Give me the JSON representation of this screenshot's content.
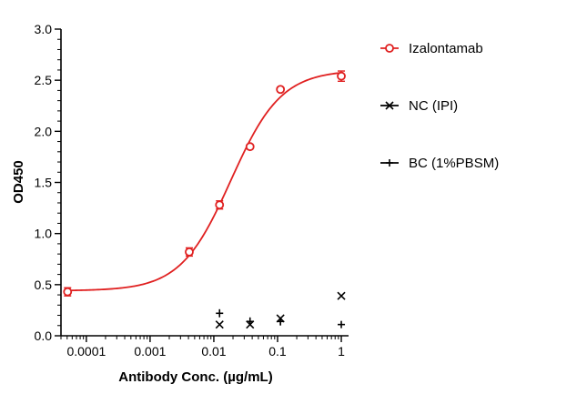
{
  "chart_data": {
    "type": "scatter",
    "xlabel": "Antibody Conc. (µg/mL)",
    "ylabel": "OD450",
    "x_scale": "log",
    "xlim": [
      4e-05,
      1.3
    ],
    "ylim": [
      0,
      3.0
    ],
    "x_ticks": [
      {
        "value": 0.0001,
        "label": "0.0001"
      },
      {
        "value": 0.001,
        "label": "0.001"
      },
      {
        "value": 0.01,
        "label": "0.01"
      },
      {
        "value": 0.1,
        "label": "0.1"
      },
      {
        "value": 1,
        "label": "1"
      }
    ],
    "y_ticks": [
      {
        "value": 0.0,
        "label": "0.0"
      },
      {
        "value": 0.5,
        "label": "0.5"
      },
      {
        "value": 1.0,
        "label": "1.0"
      },
      {
        "value": 1.5,
        "label": "1.5"
      },
      {
        "value": 2.0,
        "label": "2.0"
      },
      {
        "value": 2.5,
        "label": "2.5"
      },
      {
        "value": 3.0,
        "label": "3.0"
      }
    ],
    "legend_position": "right",
    "series": [
      {
        "name": "Izalontamab",
        "marker": "circle",
        "color": "#e02020",
        "x": [
          5.08e-05,
          0.00412,
          0.0123,
          0.037,
          0.111,
          1.0
        ],
        "y": [
          0.43,
          0.82,
          1.28,
          1.85,
          2.41,
          2.54
        ],
        "err": [
          0.04,
          0.04,
          0.04,
          0.02,
          0.02,
          0.05
        ],
        "fit": {
          "bottom": 0.44,
          "top": 2.6,
          "ec50": 0.0185,
          "hill": 1.1
        }
      },
      {
        "name": "NC (IPI)",
        "marker": "x",
        "color": "#000000",
        "x": [
          0.0123,
          0.037,
          0.111,
          1.0
        ],
        "y": [
          0.11,
          0.11,
          0.17,
          0.39
        ],
        "err": [
          0.0,
          0.0,
          0.0,
          0.0
        ]
      },
      {
        "name": "BC (1%PBSM)",
        "marker": "plus",
        "color": "#000000",
        "x": [
          0.0123,
          0.037,
          0.111,
          1.0
        ],
        "y": [
          0.22,
          0.14,
          0.14,
          0.11
        ],
        "err": [
          0.04,
          0.04,
          0.04,
          0.0
        ]
      }
    ]
  }
}
